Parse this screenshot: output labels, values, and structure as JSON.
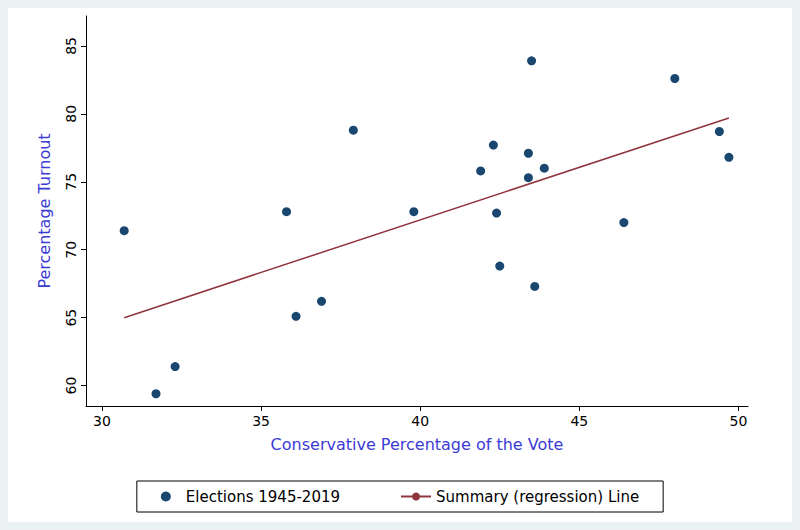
{
  "chart_data": {
    "type": "scatter",
    "x_label": "Conservative Percentage of the Vote",
    "y_label": "Percentage Turnout",
    "series": [
      {
        "name": "Elections 1945-2019",
        "type": "scatter",
        "color": "#1a476f",
        "marker": "circle",
        "x": [
          30.7,
          31.7,
          32.3,
          35.8,
          36.1,
          36.9,
          37.9,
          39.8,
          41.9,
          42.3,
          42.4,
          42.5,
          43.4,
          43.4,
          43.5,
          43.6,
          43.9,
          46.4,
          48.0,
          49.4,
          49.7
        ],
        "values": [
          71.4,
          59.4,
          61.4,
          72.8,
          65.1,
          66.2,
          78.8,
          72.8,
          75.8,
          77.7,
          72.7,
          68.8,
          77.1,
          75.3,
          83.9,
          67.3,
          76.0,
          72.0,
          82.6,
          78.7,
          76.8
        ]
      },
      {
        "name": "Summary (regression) Line",
        "type": "line",
        "color": "#90353b",
        "line_style": "solid",
        "x": [
          30.7,
          49.7
        ],
        "values": [
          65.0,
          79.7
        ]
      }
    ],
    "xlim": [
      29.5,
      50.3
    ],
    "ylim": [
      58.5,
      87.2
    ],
    "xticks": [
      30,
      35,
      40,
      45,
      50
    ],
    "yticks": [
      60,
      65,
      70,
      75,
      80,
      85
    ],
    "grid": false,
    "legend": "bottom"
  }
}
